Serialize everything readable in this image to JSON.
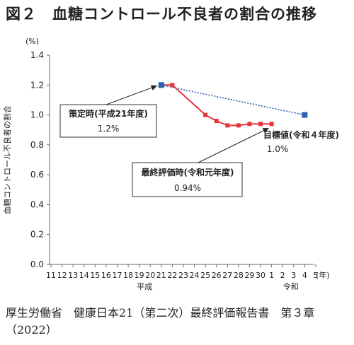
{
  "page": {
    "title": "図２　血糖コントロール不良者の割合の推移",
    "source": "厚生労働省　健康日本21（第二次）最終評価報告書　第３章（2022）"
  },
  "chart_data": {
    "type": "line",
    "ylabel": "血糖コントロール不良者の割合",
    "yunit": "(%)",
    "ylim": [
      0.0,
      1.4
    ],
    "yticks": [
      "0.0",
      "0.2",
      "0.4",
      "0.6",
      "0.8",
      "1.0",
      "1.2",
      "1.4"
    ],
    "xticks": [
      "11",
      "12",
      "13",
      "14",
      "15",
      "16",
      "17",
      "18",
      "19",
      "20",
      "21",
      "22",
      "23",
      "24",
      "25",
      "26",
      "27",
      "28",
      "29",
      "30",
      "1",
      "2",
      "3",
      "4",
      "5"
    ],
    "xunit": "(年)",
    "eras": [
      {
        "label": "平成",
        "at": "20"
      },
      {
        "label": "令和",
        "at": "3"
      }
    ],
    "series": [
      {
        "style": "solid",
        "color": "#e8343c",
        "x": [
          "21",
          "22",
          "25",
          "26",
          "27",
          "28",
          "29",
          "30",
          "1"
        ],
        "values": [
          1.2,
          1.2,
          1.0,
          0.96,
          0.93,
          0.93,
          0.94,
          0.94,
          0.94
        ]
      },
      {
        "style": "dotted",
        "color": "#2e5fae",
        "x": [
          "21",
          "4"
        ],
        "values": [
          1.2,
          1.0
        ]
      }
    ],
    "annotations": [
      {
        "title": "策定時(平成21年度)",
        "value": "1.2%",
        "boxed": true,
        "target": "21"
      },
      {
        "title": "最終評価時(令和元年度)",
        "value": "0.94%",
        "boxed": true,
        "target": "1"
      },
      {
        "title": "目標値(令和４年度)",
        "value": "1.0%",
        "boxed": false,
        "target": "4"
      }
    ]
  }
}
